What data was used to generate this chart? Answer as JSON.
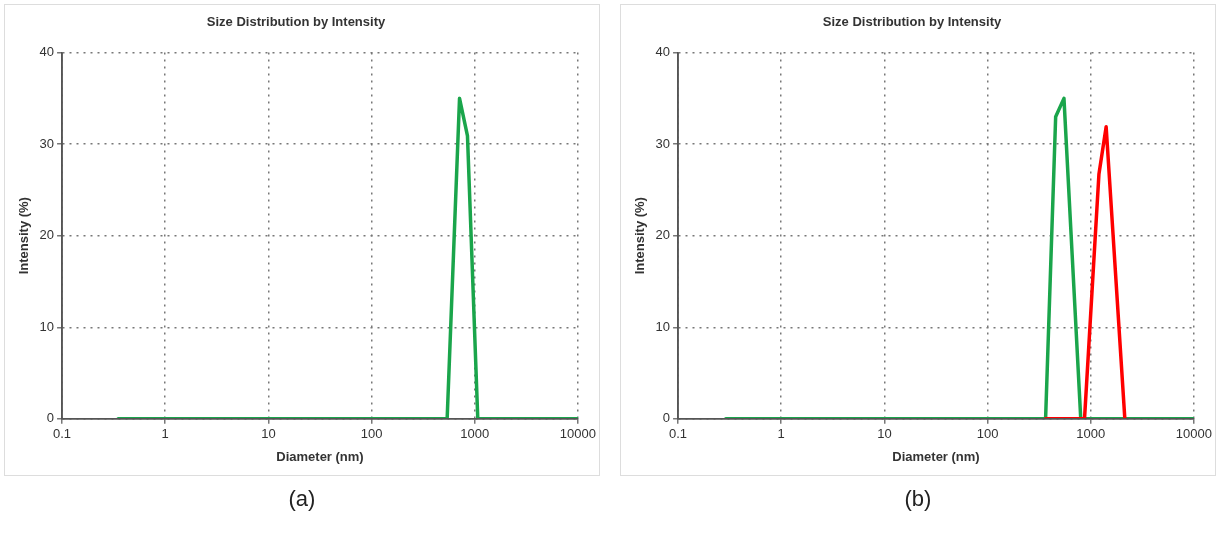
{
  "chart_data": [
    {
      "type": "line",
      "title": "Size Distribution by Intensity",
      "xlabel": "Diameter (nm)",
      "ylabel": "Intensity (%)",
      "log": "x",
      "grid": true,
      "legend": false,
      "marker": "none",
      "line_style": "solid",
      "xlim": [
        0.1,
        10000
      ],
      "xticks": [
        0.1,
        1,
        10,
        100,
        1000,
        10000
      ],
      "ylim": [
        0,
        40
      ],
      "yticks": [
        0,
        10,
        20,
        30,
        40
      ],
      "series": [
        {
          "color": "#1aa54b",
          "x": [
            0.35,
            540,
            712,
            850,
            1070,
            10000
          ],
          "values": [
            0,
            0,
            35,
            30.9,
            0,
            0
          ]
        }
      ],
      "annotations": [
        "(a)"
      ]
    },
    {
      "type": "line",
      "title": "Size Distribution by Intensity",
      "xlabel": "Diameter (nm)",
      "ylabel": "Intensity (%)",
      "log": "x",
      "grid": true,
      "legend": false,
      "marker": "none",
      "line_style": "solid",
      "xlim": [
        0.1,
        10000
      ],
      "xticks": [
        0.1,
        1,
        10,
        100,
        1000,
        10000
      ],
      "ylim": [
        0,
        40
      ],
      "yticks": [
        0,
        10,
        20,
        30,
        40
      ],
      "series": [
        {
          "color": "#ff0000",
          "x": [
            365,
            780,
            870,
            1200,
            1410,
            2140
          ],
          "values": [
            0,
            0,
            0,
            26.7,
            31.9,
            0
          ]
        },
        {
          "color": "#1aa54b",
          "x": [
            0.29,
            365,
            457,
            550,
            800,
            10000
          ],
          "values": [
            0,
            0,
            33,
            35,
            0,
            0
          ]
        }
      ],
      "annotations": [
        "(b)"
      ]
    }
  ]
}
